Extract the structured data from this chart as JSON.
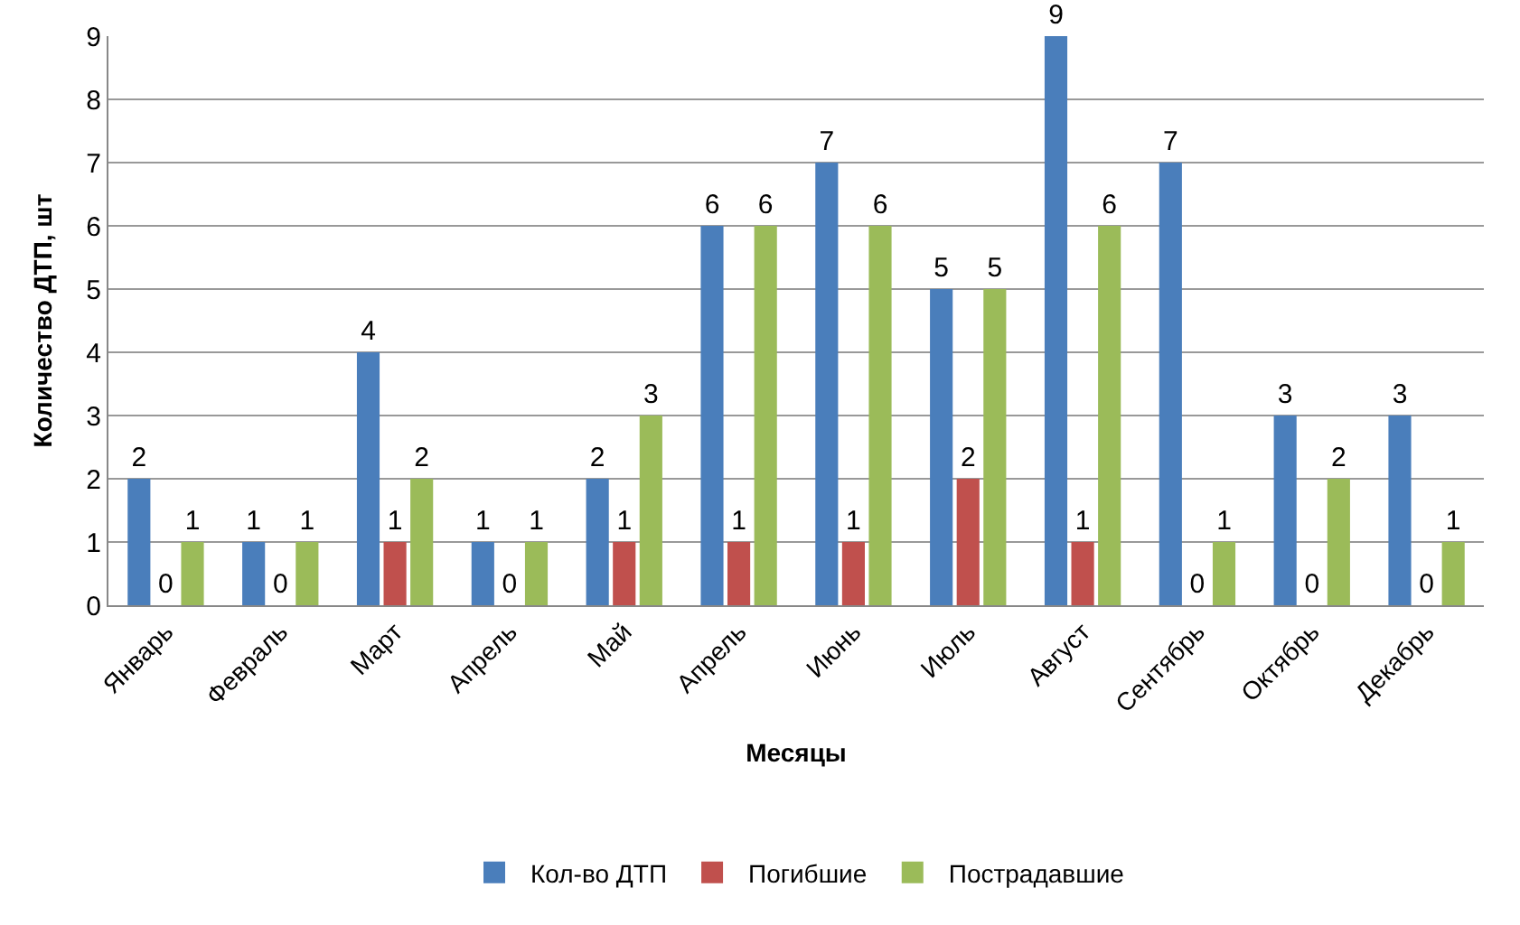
{
  "chart_data": {
    "type": "bar",
    "xlabel": "Месяцы",
    "ylabel": "Количество ДТП, шт",
    "categories": [
      "Январь",
      "Февраль",
      "Март",
      "Апрель",
      "Май",
      "Апрель",
      "Июнь",
      "Июль",
      "Август",
      "Сентябрь",
      "Октябрь",
      "Декабрь"
    ],
    "series": [
      {
        "name": "Кол-во ДТП",
        "color": "#4a7ebb",
        "values": [
          2,
          1,
          4,
          1,
          2,
          6,
          7,
          5,
          9,
          7,
          3,
          3
        ]
      },
      {
        "name": "Погибшие",
        "color": "#c0504d",
        "values": [
          0,
          0,
          1,
          0,
          1,
          1,
          1,
          2,
          1,
          0,
          0,
          0
        ]
      },
      {
        "name": "Пострадавшие",
        "color": "#9bbb59",
        "values": [
          1,
          1,
          2,
          1,
          3,
          6,
          6,
          5,
          6,
          1,
          2,
          1
        ]
      }
    ],
    "ylim": [
      0,
      9
    ],
    "yticks": [
      0,
      1,
      2,
      3,
      4,
      5,
      6,
      7,
      8,
      9
    ],
    "grid": "y",
    "legend": "bottom",
    "data_labels": true
  }
}
